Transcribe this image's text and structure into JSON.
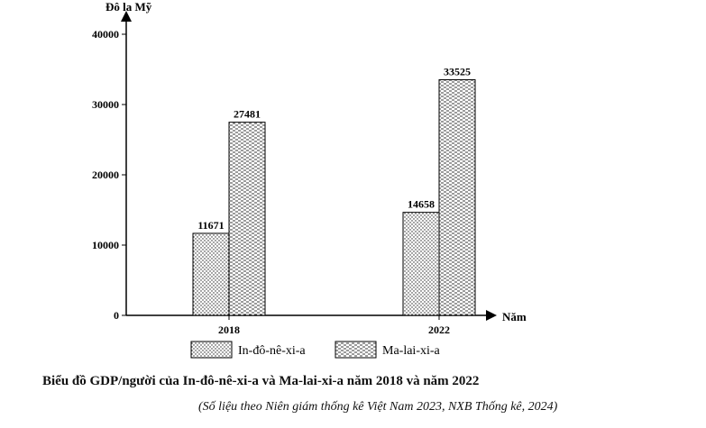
{
  "caption": "Biểu đồ GDP/người của In-đô-nê-xi-a và Ma-lai-xi-a năm 2018 và năm 2022",
  "source": "(Số liệu theo Niên giám thống kê Việt Nam 2023, NXB Thống kê, 2024)",
  "chart_data": {
    "type": "bar",
    "title": "Biểu đồ GDP/người của In-đô-nê-xi-a và Ma-lai-xi-a năm 2018 và năm 2022",
    "ylabel": "Đô la Mỹ",
    "xlabel": "Năm",
    "ylim": [
      0,
      40000
    ],
    "yticks": [
      0,
      10000,
      20000,
      30000,
      40000
    ],
    "categories": [
      "2018",
      "2022"
    ],
    "series": [
      {
        "name": "In-đô-nê-xi-a",
        "values": [
          11671,
          14658
        ],
        "pattern": "dots"
      },
      {
        "name": "Ma-lai-xi-a",
        "values": [
          27481,
          33525
        ],
        "pattern": "dashes"
      }
    ],
    "legend_position": "bottom",
    "grid": false
  }
}
